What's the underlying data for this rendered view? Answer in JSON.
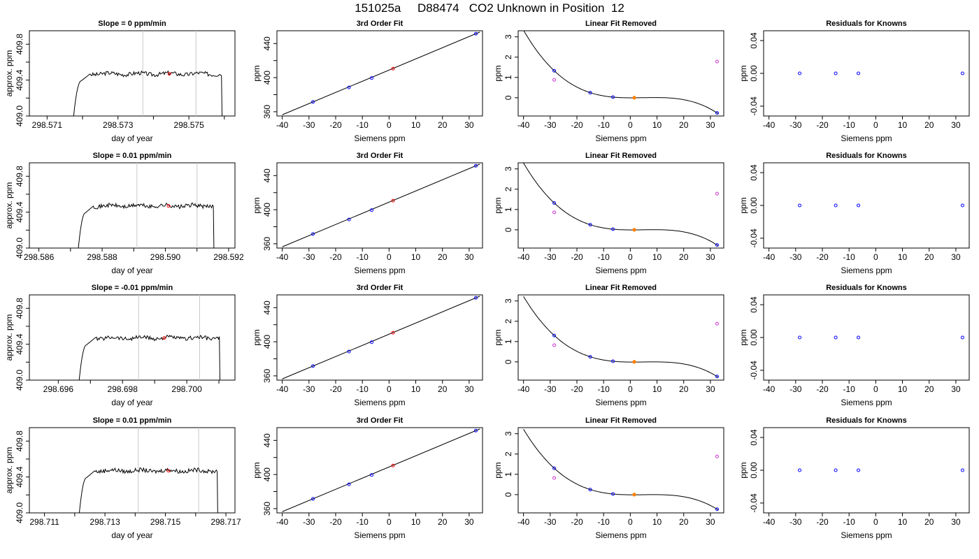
{
  "title": "151025a     D88474   CO2 Unknown in Position  12",
  "colors": {
    "unknown": "#ff0000",
    "known_fit": "#0000ff",
    "linear_removed": "#cc33cc",
    "orange_point": "#ff8000",
    "window_lines": "#c8c8c8"
  },
  "chart_data": [
    {
      "type": "line",
      "title": "Slope =  0  ppm/min",
      "xlabel": "day of year",
      "ylabel": "approx. ppm",
      "xlim": [
        298.5705,
        298.5763
      ],
      "ylim": [
        409.0,
        409.95
      ],
      "xticks": [
        298.571,
        298.572,
        298.573,
        298.574,
        298.575,
        298.576
      ],
      "xtick_labels": [
        "298.571",
        "",
        "298.573",
        "",
        "298.575",
        ""
      ],
      "yticks": [
        409.0,
        409.2,
        409.4,
        409.6,
        409.8
      ],
      "ytick_labels": [
        "409.0",
        "",
        "409.4",
        "",
        "409.8"
      ],
      "window": [
        298.5737,
        298.5752
      ],
      "unknown_point": {
        "x": 298.57445,
        "y": 409.47
      },
      "trace": {
        "start": 298.5717,
        "end": 298.576,
        "level": 409.47
      }
    },
    {
      "type": "line",
      "title": "3rd Order Fit",
      "xlabel": "Siemens ppm",
      "ylabel": "ppm",
      "xlim": [
        -42,
        35
      ],
      "ylim": [
        355,
        455
      ],
      "xticks": [
        -40,
        -30,
        -20,
        -10,
        0,
        10,
        20,
        30
      ],
      "yticks": [
        360,
        380,
        400,
        420,
        440
      ],
      "ytick_labels": [
        "360",
        "",
        "400",
        "",
        "440"
      ],
      "knowns": [
        [
          -28.5,
          371.5
        ],
        [
          -15,
          388.5
        ],
        [
          -6.5,
          399.5
        ],
        [
          32.5,
          451.5
        ]
      ],
      "unknown": [
        [
          1.5,
          410.5
        ]
      ]
    },
    {
      "type": "scatter",
      "title": "Linear Fit Removed",
      "xlabel": "Siemens ppm",
      "ylabel": "ppm",
      "xlim": [
        -42,
        35
      ],
      "ylim": [
        -0.9,
        3.3
      ],
      "xticks": [
        -40,
        -30,
        -20,
        -10,
        0,
        10,
        20,
        30
      ],
      "yticks": [
        0,
        1,
        2,
        3
      ],
      "blue": [
        [
          -28.5,
          1.33
        ],
        [
          -15,
          0.25
        ],
        [
          -6.5,
          0.03
        ],
        [
          32.5,
          -0.75
        ]
      ],
      "magenta": [
        [
          -28.5,
          0.88
        ],
        [
          32.5,
          1.78
        ]
      ],
      "orange": [
        [
          1.5,
          0.0
        ]
      ]
    },
    {
      "type": "scatter",
      "title": "Residuals for Knowns",
      "xlabel": "Siemens ppm",
      "ylabel": "ppm",
      "xlim": [
        -42,
        35
      ],
      "ylim": [
        -0.052,
        0.052
      ],
      "xticks": [
        -40,
        -30,
        -20,
        -10,
        0,
        10,
        20,
        30
      ],
      "yticks": [
        -0.04,
        0.0,
        0.04
      ],
      "ytick_labels": [
        "-0.04",
        "0.00",
        "0.04"
      ],
      "points": [
        [
          -28.5,
          0
        ],
        [
          -15,
          0
        ],
        [
          -6.5,
          0
        ],
        [
          32.5,
          0
        ]
      ]
    },
    {
      "type": "line",
      "title": "Slope =  0.01  ppm/min",
      "xlabel": "day of year",
      "ylabel": "approx. ppm",
      "xlim": [
        298.5857,
        298.5922
      ],
      "ylim": [
        409.0,
        409.95
      ],
      "xticks": [
        298.586,
        298.587,
        298.588,
        298.589,
        298.59,
        298.591,
        298.592
      ],
      "xtick_labels": [
        "298.586",
        "",
        "298.588",
        "",
        "298.590",
        "",
        "298.592"
      ],
      "yticks": [
        409.0,
        409.2,
        409.4,
        409.6,
        409.8
      ],
      "ytick_labels": [
        "409.0",
        "",
        "409.4",
        "",
        "409.8"
      ],
      "window": [
        298.5891,
        298.591
      ],
      "unknown_point": {
        "x": 298.5901,
        "y": 409.47
      },
      "trace": {
        "start": 298.5872,
        "end": 298.5916,
        "level": 409.47
      }
    },
    {
      "type": "line",
      "title": "3rd Order Fit",
      "xlabel": "Siemens ppm",
      "ylabel": "ppm",
      "xlim": [
        -42,
        35
      ],
      "ylim": [
        355,
        455
      ],
      "xticks": [
        -40,
        -30,
        -20,
        -10,
        0,
        10,
        20,
        30
      ],
      "yticks": [
        360,
        380,
        400,
        420,
        440
      ],
      "ytick_labels": [
        "360",
        "",
        "400",
        "",
        "440"
      ],
      "knowns": [
        [
          -28.5,
          371.5
        ],
        [
          -15,
          388.5
        ],
        [
          -6.5,
          399.5
        ],
        [
          32.5,
          451.5
        ]
      ],
      "unknown": [
        [
          1.5,
          410.5
        ]
      ]
    },
    {
      "type": "scatter",
      "title": "Linear Fit Removed",
      "xlabel": "Siemens ppm",
      "ylabel": "ppm",
      "xlim": [
        -42,
        35
      ],
      "ylim": [
        -0.9,
        3.3
      ],
      "xticks": [
        -40,
        -30,
        -20,
        -10,
        0,
        10,
        20,
        30
      ],
      "yticks": [
        0,
        1,
        2,
        3
      ],
      "blue": [
        [
          -28.5,
          1.32
        ],
        [
          -15,
          0.25
        ],
        [
          -6.5,
          0.03
        ],
        [
          32.5,
          -0.75
        ]
      ],
      "magenta": [
        [
          -28.5,
          0.86
        ],
        [
          32.5,
          1.78
        ]
      ],
      "orange": [
        [
          1.5,
          0.0
        ]
      ]
    },
    {
      "type": "scatter",
      "title": "Residuals for Knowns",
      "xlabel": "Siemens ppm",
      "ylabel": "ppm",
      "xlim": [
        -42,
        35
      ],
      "ylim": [
        -0.052,
        0.052
      ],
      "xticks": [
        -40,
        -30,
        -20,
        -10,
        0,
        10,
        20,
        30
      ],
      "yticks": [
        -0.04,
        0.0,
        0.04
      ],
      "ytick_labels": [
        "-0.04",
        "0.00",
        "0.04"
      ],
      "points": [
        [
          -28.5,
          0
        ],
        [
          -15,
          0
        ],
        [
          -6.5,
          0
        ],
        [
          32.5,
          0
        ]
      ]
    },
    {
      "type": "line",
      "title": "Slope =  -0.01  ppm/min",
      "xlabel": "day of year",
      "ylabel": "approx. ppm",
      "xlim": [
        298.6951,
        298.7015
      ],
      "ylim": [
        409.0,
        409.95
      ],
      "xticks": [
        298.696,
        298.697,
        298.698,
        298.699,
        298.7,
        298.701
      ],
      "xtick_labels": [
        "298.696",
        "",
        "298.698",
        "",
        "298.700",
        ""
      ],
      "yticks": [
        409.0,
        409.2,
        409.4,
        409.6,
        409.8
      ],
      "ytick_labels": [
        "409.0",
        "",
        "409.4",
        "",
        "409.8"
      ],
      "window": [
        298.6985,
        298.7004
      ],
      "unknown_point": {
        "x": 298.6993,
        "y": 409.47
      },
      "trace": {
        "start": 298.6966,
        "end": 298.7011,
        "level": 409.47
      }
    },
    {
      "type": "line",
      "title": "3rd Order Fit",
      "xlabel": "Siemens ppm",
      "ylabel": "ppm",
      "xlim": [
        -42,
        35
      ],
      "ylim": [
        355,
        455
      ],
      "xticks": [
        -40,
        -30,
        -20,
        -10,
        0,
        10,
        20,
        30
      ],
      "yticks": [
        360,
        380,
        400,
        420,
        440
      ],
      "ytick_labels": [
        "360",
        "",
        "400",
        "",
        "440"
      ],
      "knowns": [
        [
          -28.5,
          371.5
        ],
        [
          -15,
          388.5
        ],
        [
          -6.5,
          399.5
        ],
        [
          32.5,
          451.5
        ]
      ],
      "unknown": [
        [
          1.5,
          410.5
        ]
      ]
    },
    {
      "type": "scatter",
      "title": "Linear Fit Removed",
      "xlabel": "Siemens ppm",
      "ylabel": "ppm",
      "xlim": [
        -42,
        35
      ],
      "ylim": [
        -0.9,
        3.3
      ],
      "xticks": [
        -40,
        -30,
        -20,
        -10,
        0,
        10,
        20,
        30
      ],
      "yticks": [
        0,
        1,
        2,
        3
      ],
      "blue": [
        [
          -28.5,
          1.3
        ],
        [
          -15,
          0.25
        ],
        [
          -6.5,
          0.03
        ],
        [
          32.5,
          -0.72
        ]
      ],
      "magenta": [
        [
          -28.5,
          0.82
        ],
        [
          32.5,
          1.88
        ]
      ],
      "orange": [
        [
          1.5,
          0.0
        ]
      ]
    },
    {
      "type": "scatter",
      "title": "Residuals for Knowns",
      "xlabel": "Siemens ppm",
      "ylabel": "ppm",
      "xlim": [
        -42,
        35
      ],
      "ylim": [
        -0.052,
        0.052
      ],
      "xticks": [
        -40,
        -30,
        -20,
        -10,
        0,
        10,
        20,
        30
      ],
      "yticks": [
        -0.04,
        0.0,
        0.04
      ],
      "ytick_labels": [
        "-0.04",
        "0.00",
        "0.04"
      ],
      "points": [
        [
          -28.5,
          0
        ],
        [
          -15,
          0
        ],
        [
          -6.5,
          0
        ],
        [
          32.5,
          0
        ]
      ]
    },
    {
      "type": "line",
      "title": "Slope =  0.01  ppm/min",
      "xlabel": "day of year",
      "ylabel": "approx. ppm",
      "xlim": [
        298.7105,
        298.7173
      ],
      "ylim": [
        409.0,
        409.95
      ],
      "xticks": [
        298.711,
        298.712,
        298.713,
        298.714,
        298.715,
        298.716,
        298.717
      ],
      "xtick_labels": [
        "298.711",
        "",
        "298.713",
        "",
        "298.715",
        "",
        "298.717"
      ],
      "yticks": [
        409.0,
        409.2,
        409.4,
        409.6,
        409.8
      ],
      "ytick_labels": [
        "409.0",
        "",
        "409.4",
        "",
        "409.8"
      ],
      "window": [
        298.7141,
        298.7161
      ],
      "unknown_point": {
        "x": 298.7151,
        "y": 409.47
      },
      "trace": {
        "start": 298.7121,
        "end": 298.7168,
        "level": 409.47
      }
    },
    {
      "type": "line",
      "title": "3rd Order Fit",
      "xlabel": "Siemens ppm",
      "ylabel": "ppm",
      "xlim": [
        -42,
        35
      ],
      "ylim": [
        355,
        455
      ],
      "xticks": [
        -40,
        -30,
        -20,
        -10,
        0,
        10,
        20,
        30
      ],
      "yticks": [
        360,
        380,
        400,
        420,
        440
      ],
      "ytick_labels": [
        "360",
        "",
        "400",
        "",
        "440"
      ],
      "knowns": [
        [
          -28.5,
          371.5
        ],
        [
          -15,
          388.5
        ],
        [
          -6.5,
          399.5
        ],
        [
          32.5,
          451.5
        ]
      ],
      "unknown": [
        [
          1.5,
          410.5
        ]
      ]
    },
    {
      "type": "scatter",
      "title": "Linear Fit Removed",
      "xlabel": "Siemens ppm",
      "ylabel": "ppm",
      "xlim": [
        -42,
        35
      ],
      "ylim": [
        -0.9,
        3.3
      ],
      "xticks": [
        -40,
        -30,
        -20,
        -10,
        0,
        10,
        20,
        30
      ],
      "yticks": [
        0,
        1,
        2,
        3
      ],
      "blue": [
        [
          -28.5,
          1.3
        ],
        [
          -15,
          0.25
        ],
        [
          -6.5,
          0.03
        ],
        [
          32.5,
          -0.72
        ]
      ],
      "magenta": [
        [
          -28.5,
          0.82
        ],
        [
          32.5,
          1.88
        ]
      ],
      "orange": [
        [
          1.5,
          0.0
        ]
      ]
    },
    {
      "type": "scatter",
      "title": "Residuals for Knowns",
      "xlabel": "Siemens ppm",
      "ylabel": "ppm",
      "xlim": [
        -42,
        35
      ],
      "ylim": [
        -0.052,
        0.052
      ],
      "xticks": [
        -40,
        -30,
        -20,
        -10,
        0,
        10,
        20,
        30
      ],
      "yticks": [
        -0.04,
        0.0,
        0.04
      ],
      "ytick_labels": [
        "-0.04",
        "0.00",
        "0.04"
      ],
      "points": [
        [
          -28.5,
          0
        ],
        [
          -15,
          0
        ],
        [
          -6.5,
          0
        ],
        [
          32.5,
          0
        ]
      ]
    }
  ]
}
